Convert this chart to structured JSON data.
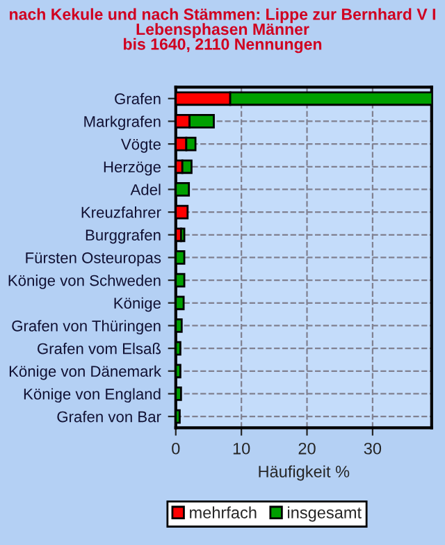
{
  "chart_data": {
    "type": "bar",
    "orientation": "horizontal",
    "stacked": true,
    "title": "nach Kekule und nach Stämmen: Lippe zur Bernhard V I\nLebensphasen Männer\nbis 1640, 2110 Nennungen",
    "xlabel": "Häufigkeit %",
    "categories": [
      "Grafen",
      "Markgrafen",
      "Vögte",
      "Herzöge",
      "Adel",
      "Kreuzfahrer",
      "Burggrafen",
      "Fürsten Osteuropas",
      "Könige von Schweden",
      "Könige",
      "Grafen von Thüringen",
      "Grafen vom Elsaß",
      "Könige von Dänemark",
      "Könige von England",
      "Grafen von Bar"
    ],
    "series": [
      {
        "name": "mehrfach",
        "color": "#ff0000",
        "values": [
          8.3,
          2.1,
          1.6,
          1.0,
          null,
          1.8,
          0.8,
          null,
          null,
          null,
          null,
          null,
          null,
          null,
          null
        ]
      },
      {
        "name": "insgesamt",
        "color": "#00a000",
        "values": [
          30.8,
          3.7,
          1.4,
          1.4,
          2.0,
          null,
          0.5,
          1.3,
          1.3,
          1.2,
          0.9,
          0.7,
          0.7,
          0.8,
          0.6
        ]
      }
    ],
    "xlim": [
      0,
      39
    ],
    "xticks": [
      0,
      10,
      20,
      30
    ],
    "grid": true,
    "legend": "bottom"
  }
}
